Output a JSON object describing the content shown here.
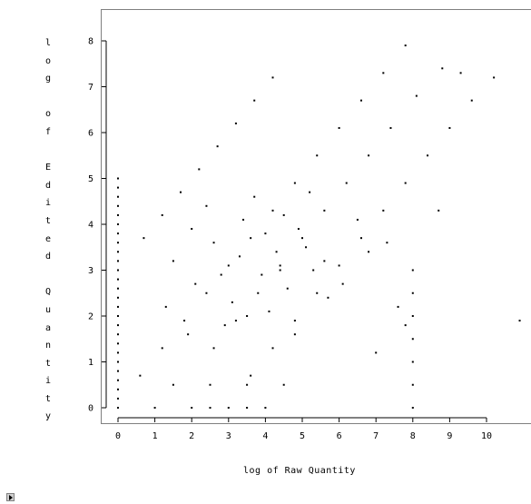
{
  "chart_data": {
    "type": "scatter",
    "title": "",
    "xlabel": "log of Raw Quantity",
    "ylabel": "log of Edited Quantity",
    "xlim": [
      -0.5,
      11.2
    ],
    "ylim": [
      -0.2,
      8.35
    ],
    "xticks": [
      0,
      1,
      2,
      3,
      4,
      5,
      6,
      7,
      8,
      9,
      10
    ],
    "yticks": [
      0,
      1,
      2,
      3,
      4,
      5,
      6,
      7,
      8
    ],
    "grid": false,
    "legend": "none",
    "marker_color": "#000000",
    "series": [
      {
        "values": [
          [
            0,
            5.0
          ],
          [
            0,
            4.8
          ],
          [
            0,
            4.6
          ],
          [
            0,
            4.4
          ],
          [
            0,
            4.2
          ],
          [
            0,
            4.0
          ],
          [
            0,
            3.8
          ],
          [
            0,
            3.6
          ],
          [
            0,
            3.4
          ],
          [
            0,
            3.2
          ],
          [
            0,
            3.0
          ],
          [
            0,
            2.8
          ],
          [
            0,
            2.6
          ],
          [
            0,
            2.4
          ],
          [
            0,
            2.2
          ],
          [
            0,
            2.0
          ],
          [
            0,
            1.8
          ],
          [
            0,
            1.6
          ],
          [
            0,
            1.4
          ],
          [
            0,
            1.2
          ],
          [
            0,
            1.0
          ],
          [
            0,
            0.8
          ],
          [
            0,
            0.6
          ],
          [
            0,
            0.4
          ],
          [
            0,
            0.2
          ],
          [
            0,
            0.0
          ],
          [
            0.7,
            3.7
          ],
          [
            1.2,
            4.2
          ],
          [
            1.7,
            4.7
          ],
          [
            2.2,
            5.2
          ],
          [
            2.7,
            5.7
          ],
          [
            3.2,
            6.2
          ],
          [
            3.7,
            6.7
          ],
          [
            4.2,
            7.2
          ],
          [
            0.6,
            0.7
          ],
          [
            1.2,
            1.3
          ],
          [
            1.8,
            1.9
          ],
          [
            2.4,
            2.5
          ],
          [
            3.0,
            3.1
          ],
          [
            3.6,
            3.7
          ],
          [
            4.2,
            4.3
          ],
          [
            4.8,
            4.9
          ],
          [
            5.4,
            5.5
          ],
          [
            6.0,
            6.1
          ],
          [
            6.6,
            6.7
          ],
          [
            7.2,
            7.3
          ],
          [
            7.8,
            7.9
          ],
          [
            2.6,
            1.3
          ],
          [
            3.2,
            1.9
          ],
          [
            3.8,
            2.5
          ],
          [
            4.4,
            3.1
          ],
          [
            5.0,
            3.7
          ],
          [
            5.6,
            4.3
          ],
          [
            6.2,
            4.9
          ],
          [
            6.8,
            5.5
          ],
          [
            7.4,
            6.1
          ],
          [
            8.1,
            6.8
          ],
          [
            8.8,
            7.4
          ],
          [
            3.6,
            0.7
          ],
          [
            4.2,
            1.3
          ],
          [
            4.8,
            1.9
          ],
          [
            5.4,
            2.5
          ],
          [
            6.0,
            3.1
          ],
          [
            6.6,
            3.7
          ],
          [
            7.2,
            4.3
          ],
          [
            7.8,
            4.9
          ],
          [
            8.4,
            5.5
          ],
          [
            9.0,
            6.1
          ],
          [
            9.6,
            6.7
          ],
          [
            1.5,
            3.2
          ],
          [
            2.1,
            2.7
          ],
          [
            2.6,
            3.6
          ],
          [
            3.1,
            2.3
          ],
          [
            3.4,
            4.1
          ],
          [
            3.9,
            2.9
          ],
          [
            4.3,
            3.4
          ],
          [
            4.6,
            2.6
          ],
          [
            4.9,
            3.9
          ],
          [
            5.3,
            3.0
          ],
          [
            1.9,
            1.6
          ],
          [
            2.4,
            4.4
          ],
          [
            2.9,
            1.8
          ],
          [
            3.3,
            3.3
          ],
          [
            3.7,
            4.6
          ],
          [
            4.1,
            2.1
          ],
          [
            4.5,
            4.2
          ],
          [
            4.8,
            1.6
          ],
          [
            5.2,
            4.7
          ],
          [
            5.7,
            2.4
          ],
          [
            1.3,
            2.2
          ],
          [
            2.0,
            3.9
          ],
          [
            2.8,
            2.9
          ],
          [
            3.5,
            2.0
          ],
          [
            4.0,
            3.8
          ],
          [
            4.4,
            3.0
          ],
          [
            5.1,
            3.5
          ],
          [
            5.6,
            3.2
          ],
          [
            6.1,
            2.7
          ],
          [
            6.5,
            4.1
          ],
          [
            1.0,
            0.0
          ],
          [
            2.0,
            0.0
          ],
          [
            2.5,
            0.0
          ],
          [
            3.0,
            0.0
          ],
          [
            3.5,
            0.0
          ],
          [
            4.0,
            0.0
          ],
          [
            1.5,
            0.5
          ],
          [
            2.5,
            0.5
          ],
          [
            3.5,
            0.5
          ],
          [
            4.5,
            0.5
          ],
          [
            8.0,
            3.0
          ],
          [
            8.0,
            2.5
          ],
          [
            8.0,
            2.0
          ],
          [
            8.0,
            1.5
          ],
          [
            8.0,
            1.0
          ],
          [
            8.0,
            0.5
          ],
          [
            8.0,
            0.0
          ],
          [
            7.6,
            2.2
          ],
          [
            7.8,
            1.8
          ],
          [
            7.0,
            1.2
          ],
          [
            9.3,
            7.3
          ],
          [
            10.2,
            7.2
          ],
          [
            8.7,
            4.3
          ],
          [
            10.9,
            1.9
          ],
          [
            7.3,
            3.6
          ],
          [
            6.8,
            3.4
          ]
        ]
      }
    ]
  },
  "y_label_chars": [
    "l",
    "o",
    "g",
    "",
    "o",
    "f",
    "",
    "E",
    "d",
    "i",
    "t",
    "e",
    "d",
    "",
    "Q",
    "u",
    "a",
    "n",
    "t",
    "i",
    "t",
    "y"
  ]
}
